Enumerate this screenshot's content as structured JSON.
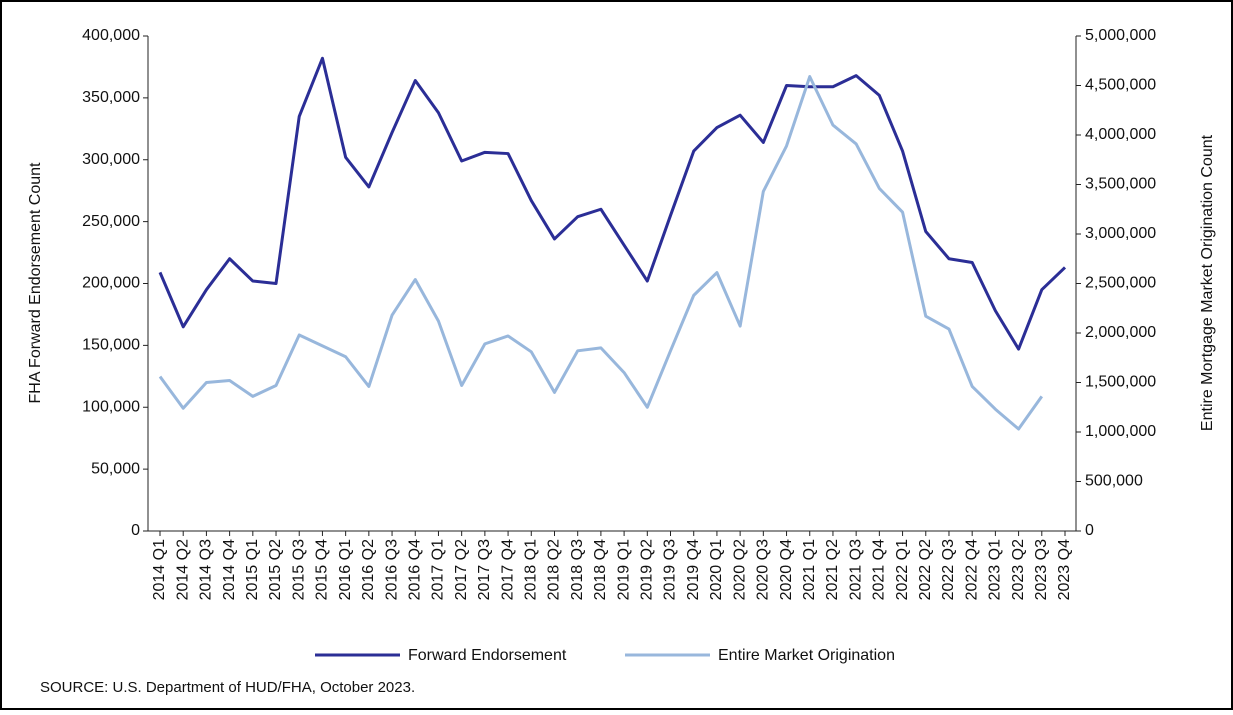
{
  "chart_data": {
    "type": "line",
    "y_label": "FHA Forward Endorsement Count",
    "y2_label": "Entire Mortgage Market Origination Count",
    "source": "SOURCE: U.S. Department of HUD/FHA, October 2023.",
    "categories": [
      "2014 Q1",
      "2014 Q2",
      "2014 Q3",
      "2014 Q4",
      "2015 Q1",
      "2015 Q2",
      "2015 Q3",
      "2015 Q4",
      "2016 Q1",
      "2016 Q2",
      "2016 Q3",
      "2016 Q4",
      "2017 Q1",
      "2017 Q2",
      "2017 Q3",
      "2017 Q4",
      "2018 Q1",
      "2018 Q2",
      "2018 Q3",
      "2018 Q4",
      "2019 Q1",
      "2019 Q2",
      "2019 Q3",
      "2019 Q4",
      "2020 Q1",
      "2020 Q2",
      "2020 Q3",
      "2020 Q4",
      "2021 Q1",
      "2021 Q2",
      "2021 Q3",
      "2021 Q4",
      "2022 Q1",
      "2022 Q2",
      "2022 Q3",
      "2022 Q4",
      "2023 Q1",
      "2023 Q2",
      "2023 Q3",
      "2023 Q4"
    ],
    "series": [
      {
        "name": "Forward Endorsement",
        "color": "#2b2e96",
        "values": [
          209000,
          165000,
          195000,
          220000,
          202000,
          200000,
          335000,
          382000,
          302000,
          278000,
          322000,
          364000,
          338000,
          299000,
          306000,
          305000,
          267000,
          236000,
          254000,
          260000,
          231000,
          202000,
          255000,
          307000,
          326000,
          336000,
          314000,
          360000,
          359000,
          359000,
          368000,
          352000,
          307000,
          242000,
          220000,
          217000,
          178000,
          147000,
          195000,
          213000
        ]
      },
      {
        "name": "Entire Market Origination",
        "color": "#98b7dc",
        "axis": "y2",
        "values": [
          1560000,
          1240000,
          1500000,
          1520000,
          1360000,
          1470000,
          1980000,
          1870000,
          1760000,
          1460000,
          2180000,
          2540000,
          2120000,
          1470000,
          1890000,
          1970000,
          1810000,
          1400000,
          1820000,
          1850000,
          1600000,
          1250000,
          1820000,
          2380000,
          2610000,
          2070000,
          3430000,
          3890000,
          4590000,
          4100000,
          3910000,
          3460000,
          3220000,
          2170000,
          2040000,
          1460000,
          1230000,
          1030000,
          1360000,
          null
        ]
      }
    ],
    "ylim": [
      0,
      400000
    ],
    "yticks": [
      0,
      {
        "value": 50000,
        "label": "50,000"
      },
      {
        "value": 100000,
        "label": "100,000"
      },
      {
        "value": 150000,
        "label": "150,000"
      },
      {
        "value": 200000,
        "label": "200,000"
      },
      {
        "value": 250000,
        "label": "250,000"
      },
      {
        "value": 300000,
        "label": "300,000"
      },
      {
        "value": 350000,
        "label": "350,000"
      },
      {
        "value": 400000,
        "label": "400,000"
      }
    ],
    "y2lim": [
      0,
      5000000
    ],
    "y2ticks": [
      0,
      {
        "value": 500000,
        "label": "500,000"
      },
      {
        "value": 1000000,
        "label": "1,000,000"
      },
      {
        "value": 1500000,
        "label": "1,500,000"
      },
      {
        "value": 2000000,
        "label": "2,000,000"
      },
      {
        "value": 2500000,
        "label": "2,500,000"
      },
      {
        "value": 3000000,
        "label": "3,000,000"
      },
      {
        "value": 3500000,
        "label": "3,500,000"
      },
      {
        "value": 4000000,
        "label": "4,000,000"
      },
      {
        "value": 4500000,
        "label": "4,500,000"
      },
      {
        "value": 5000000,
        "label": "5,000,000"
      }
    ],
    "legend": "bottom"
  }
}
